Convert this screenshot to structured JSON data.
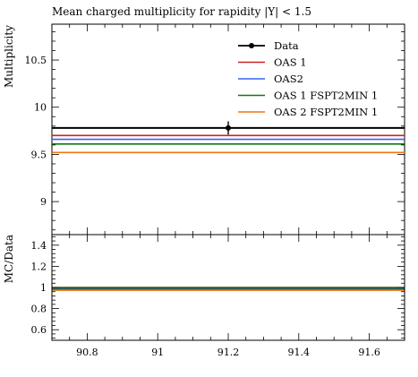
{
  "chart_data": {
    "type": "line",
    "title": "Mean charged multiplicity for rapidity |Y| < 1.5",
    "x_range": [
      90.7,
      91.7
    ],
    "x_ticks": [
      90.8,
      91.0,
      91.2,
      91.4,
      91.6
    ],
    "x_tick_labels": [
      "90.8",
      "91",
      "91.2",
      "91.4",
      "91.6"
    ],
    "main": {
      "ylabel": "Multiplicity",
      "ylim": [
        8.65,
        10.88
      ],
      "y_ticks": [
        9.0,
        9.5,
        10.0,
        10.5
      ],
      "y_tick_labels": [
        "9",
        "9.5",
        "10",
        "10.5"
      ],
      "data_point": {
        "name": "Data",
        "x": 91.2,
        "y": 9.78,
        "yerr": 0.07
      },
      "series": [
        {
          "name": "Data",
          "color": "#000000",
          "y": 9.78,
          "kind": "data"
        },
        {
          "name": "OAS 1",
          "color": "#cc2222",
          "y": 9.7,
          "kind": "mc"
        },
        {
          "name": "OAS2",
          "color": "#3366ee",
          "y": 9.66,
          "kind": "mc"
        },
        {
          "name": "OAS 1 FSPT2MIN 1",
          "color": "#117711",
          "y": 9.61,
          "kind": "mc"
        },
        {
          "name": "OAS 2 FSPT2MIN 1",
          "color": "#ee7711",
          "y": 9.52,
          "kind": "mc"
        }
      ]
    },
    "ratio": {
      "ylabel": "MC/Data",
      "ylim": [
        0.5,
        1.5
      ],
      "y_ticks": [
        0.6,
        0.8,
        1.0,
        1.2,
        1.4
      ],
      "y_tick_labels": [
        "0.6",
        "0.8",
        "1",
        "1.2",
        "1.4"
      ],
      "band": {
        "y": 1.0,
        "err": 0.007,
        "color": "#f5ee7a"
      },
      "series": [
        {
          "name": "OAS 1",
          "color": "#cc2222",
          "y": 0.992
        },
        {
          "name": "OAS2",
          "color": "#3366ee",
          "y": 0.988
        },
        {
          "name": "OAS 1 FSPT2MIN 1",
          "color": "#117711",
          "y": 0.983
        },
        {
          "name": "OAS 2 FSPT2MIN 1",
          "color": "#ee7711",
          "y": 0.973
        }
      ]
    }
  }
}
